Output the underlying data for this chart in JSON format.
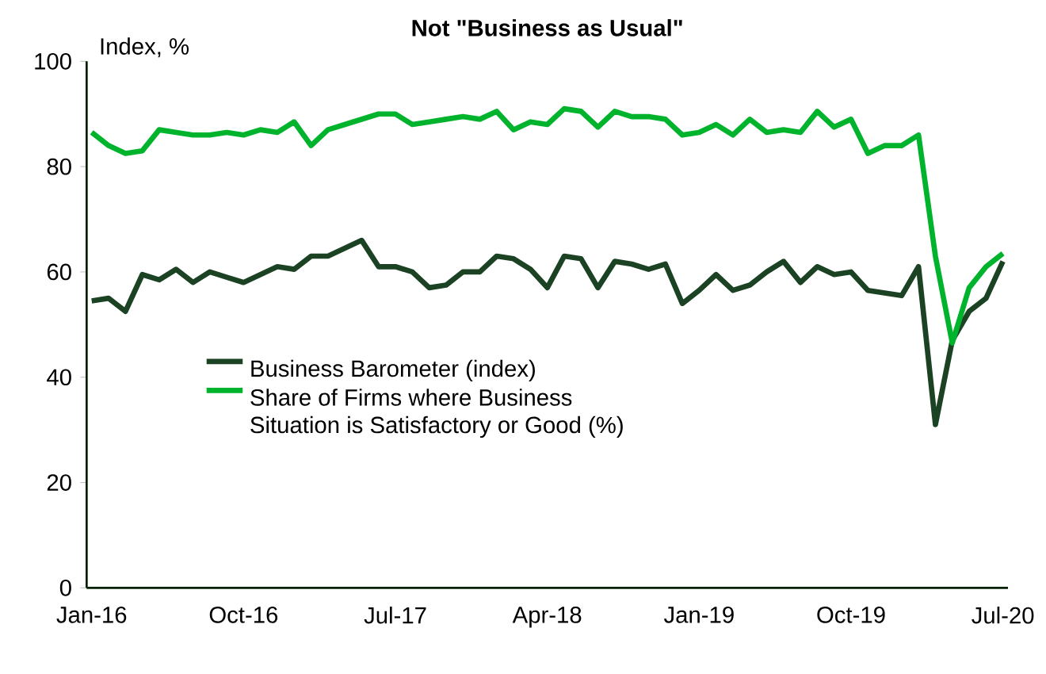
{
  "chart_data": {
    "type": "line",
    "title": "Not \"Business as Usual\"",
    "ylabel": "Index, %",
    "categories": [
      "Jan-16",
      null,
      null,
      null,
      null,
      null,
      null,
      null,
      null,
      "Oct-16",
      null,
      null,
      null,
      null,
      null,
      null,
      null,
      null,
      "Jul-17",
      null,
      null,
      null,
      null,
      null,
      null,
      null,
      null,
      "Apr-18",
      null,
      null,
      null,
      null,
      null,
      null,
      null,
      null,
      "Jan-19",
      null,
      null,
      null,
      null,
      null,
      null,
      null,
      null,
      "Oct-19",
      null,
      null,
      null,
      null,
      null,
      null,
      null,
      null,
      "Jul-20"
    ],
    "series": [
      {
        "name": "Business Barometer (index)",
        "color": "#1a4223",
        "values": [
          54.5,
          55,
          52.5,
          59.5,
          58.5,
          60.5,
          58,
          60,
          59,
          58,
          59.5,
          61,
          60.5,
          63,
          63,
          64.5,
          66,
          61,
          61,
          60,
          57,
          57.5,
          60,
          60,
          63,
          62.5,
          60.5,
          57,
          63,
          62.5,
          57,
          62,
          61.5,
          60.5,
          61.5,
          54,
          56.5,
          59.5,
          56.5,
          57.5,
          60,
          62,
          58,
          61,
          59.5,
          60,
          56.5,
          56,
          55.5,
          61,
          31,
          47,
          52.5,
          55,
          62
        ]
      },
      {
        "name": "Share of Firms where Business Situation is Satisfactory or Good (%)",
        "color": "#00b32c",
        "values": [
          86.5,
          84,
          82.5,
          83,
          87,
          86.5,
          86,
          86,
          86.5,
          86,
          87,
          86.5,
          88.5,
          84,
          87,
          88,
          89,
          90,
          90,
          88,
          88.5,
          89,
          89.5,
          89,
          90.5,
          87,
          88.5,
          88,
          91,
          90.5,
          87.5,
          90.5,
          89.5,
          89.5,
          89,
          86,
          86.5,
          88,
          86,
          89,
          86.5,
          87,
          86.5,
          90.5,
          87.5,
          89,
          82.5,
          84,
          84,
          86,
          63,
          46.5,
          57,
          61,
          63.5
        ]
      }
    ],
    "ylim": [
      0,
      100
    ],
    "yticks": [
      0,
      20,
      40,
      60,
      80,
      100
    ],
    "legend": "left",
    "marker": "none",
    "line_style": "solid"
  }
}
